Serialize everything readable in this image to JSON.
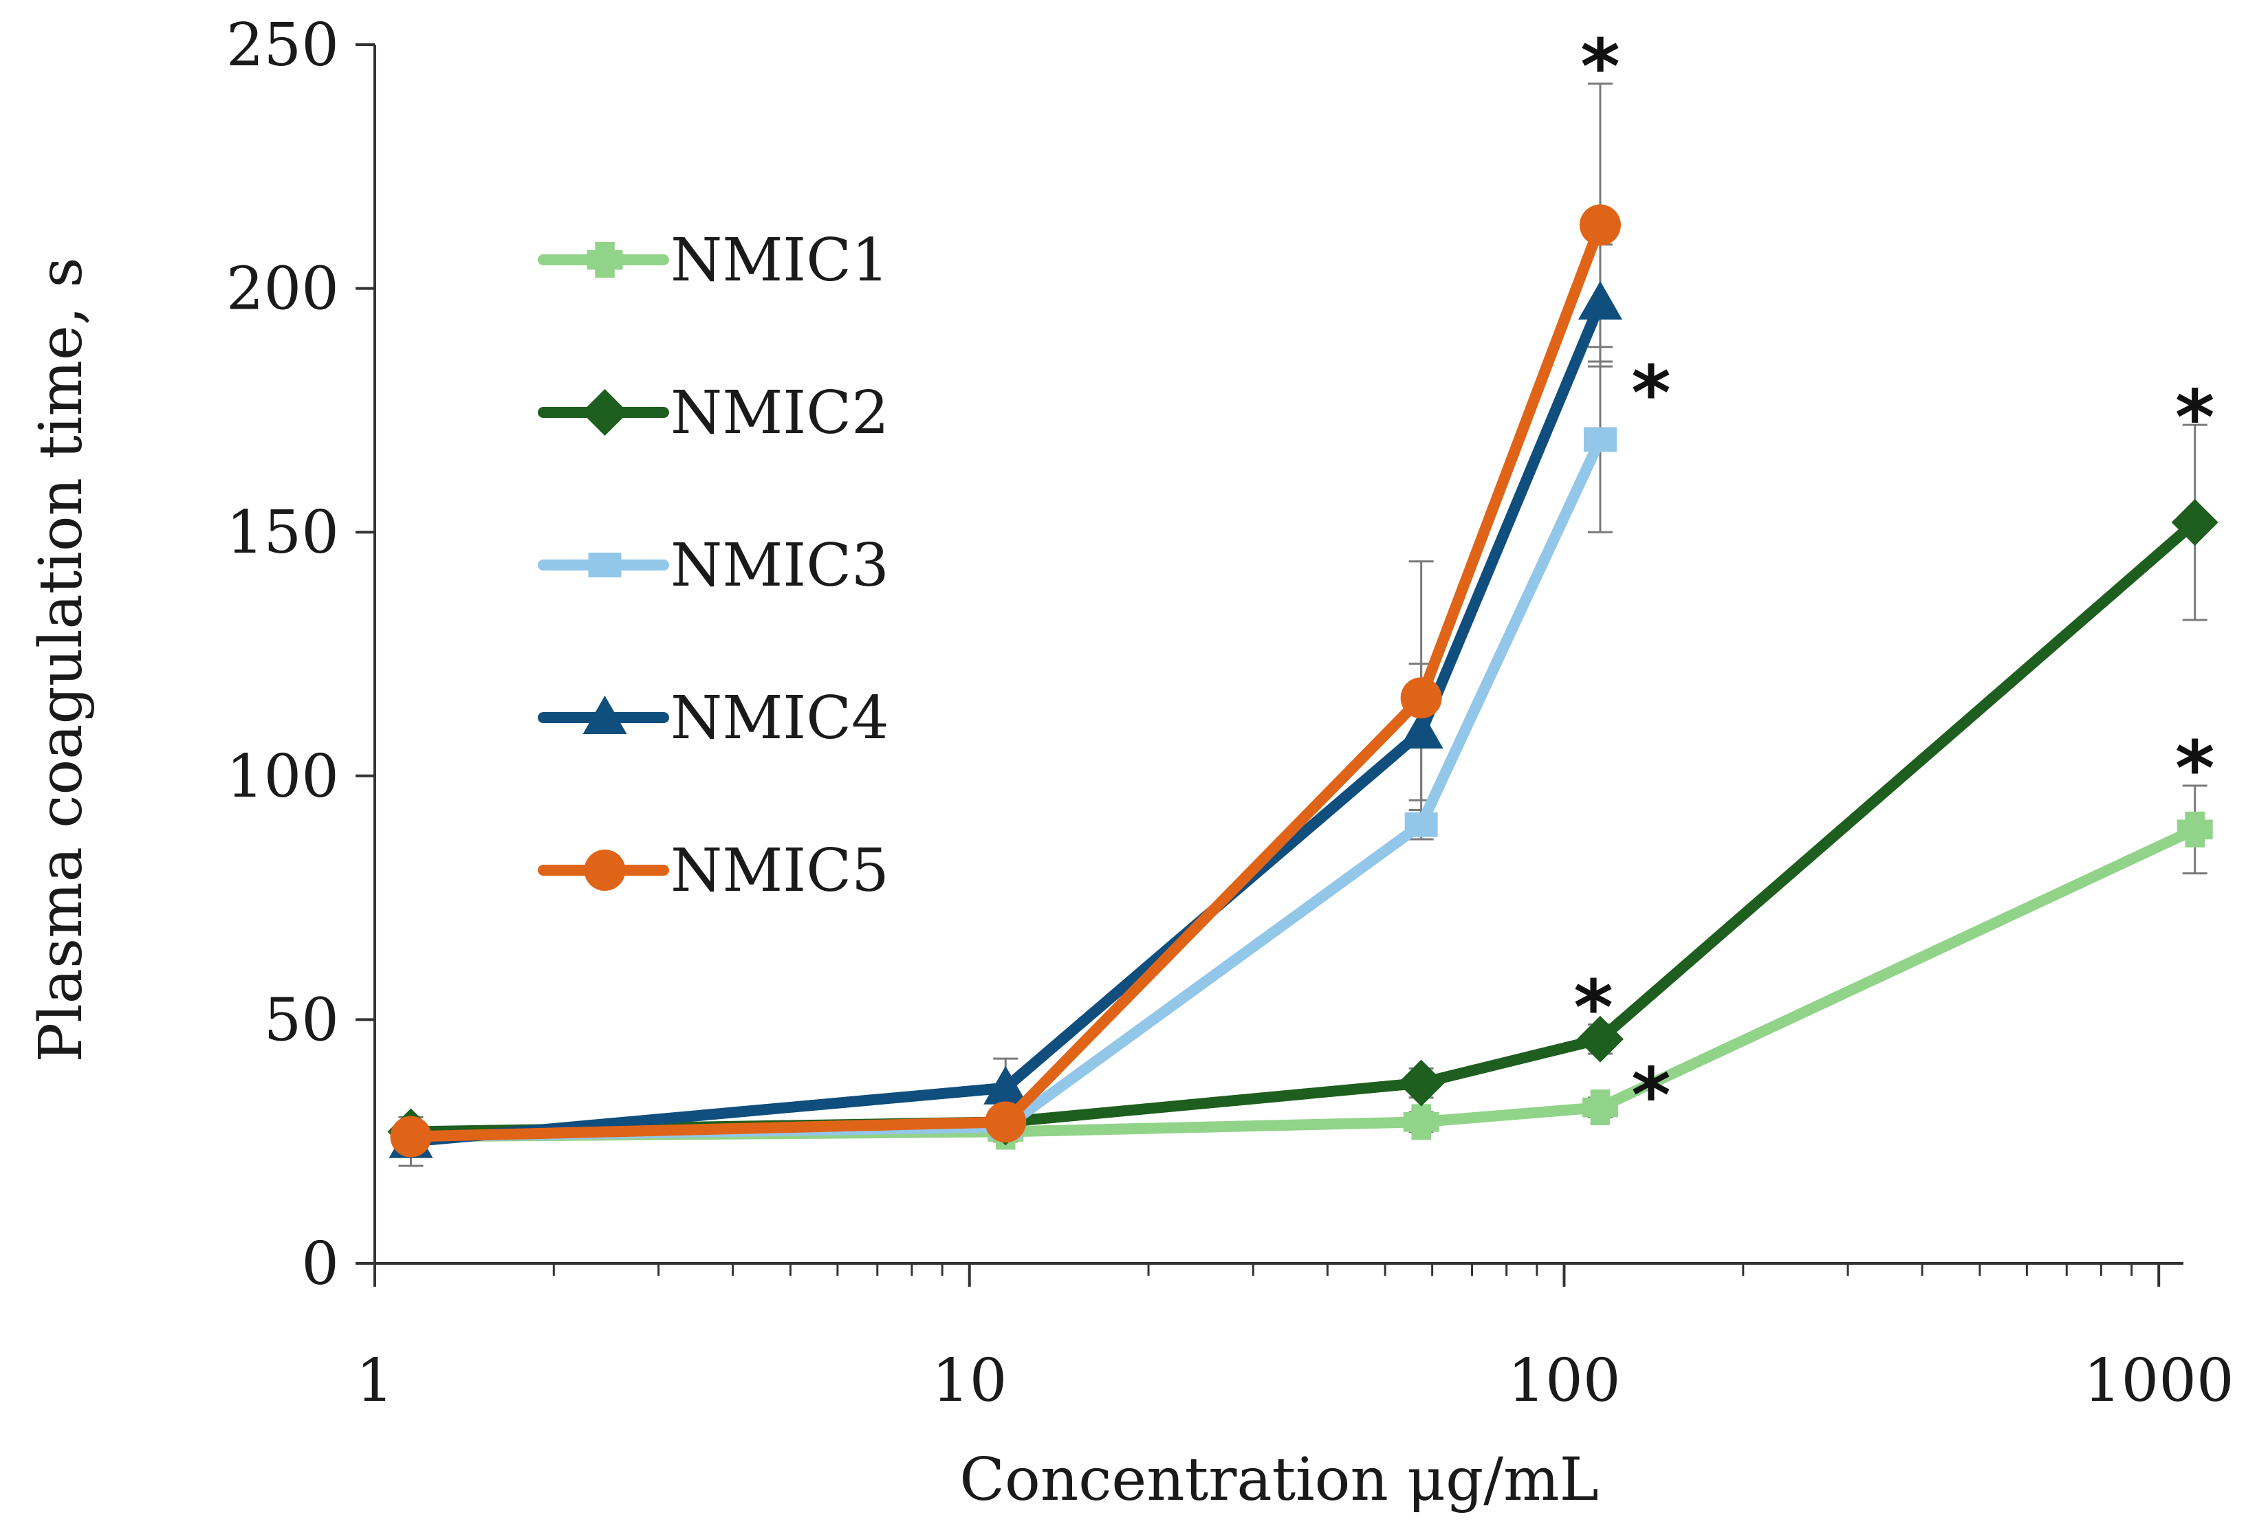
{
  "chart_data": {
    "type": "line",
    "title": "",
    "xlabel": "Concentration μg/mL",
    "ylabel": "Plasma coagulation time, s",
    "xscale": "log",
    "xlim": [
      1,
      1100
    ],
    "ylim": [
      0,
      250
    ],
    "x_ticks": [
      1,
      10,
      100,
      1000
    ],
    "x_tick_labels": [
      "1",
      "10",
      "100",
      "1000"
    ],
    "y_ticks": [
      0,
      50,
      100,
      150,
      200,
      250
    ],
    "y_tick_labels": [
      "0",
      "50",
      "100",
      "150",
      "200",
      "250"
    ],
    "legend_position": "top-left",
    "series": [
      {
        "name": "NMIC1",
        "color": "#92d38a",
        "marker": "cross",
        "x": [
          1.15,
          11.5,
          57.5,
          115,
          1150
        ],
        "y": [
          26,
          27,
          29,
          32,
          89
        ],
        "err": [
          2,
          2,
          2,
          2,
          9
        ]
      },
      {
        "name": "NMIC2",
        "color": "#1e5e1e",
        "marker": "diamond",
        "x": [
          1.15,
          11.5,
          57.5,
          115,
          1150
        ],
        "y": [
          27,
          29,
          37,
          46,
          152
        ],
        "err": [
          2,
          2,
          3,
          3,
          20
        ]
      },
      {
        "name": "NMIC3",
        "color": "#93c7ea",
        "marker": "square",
        "x": [
          1.15,
          11.5,
          57.5,
          115
        ],
        "y": [
          26,
          28,
          90,
          169
        ],
        "err": [
          2,
          2,
          3,
          19
        ]
      },
      {
        "name": "NMIC4",
        "color": "#0f4e7d",
        "marker": "triangle",
        "x": [
          1.15,
          11.5,
          57.5,
          115
        ],
        "y": [
          25,
          36,
          109,
          197
        ],
        "err": [
          5,
          6,
          14,
          12
        ]
      },
      {
        "name": "NMIC5",
        "color": "#e06418",
        "marker": "circle",
        "x": [
          1.15,
          11.5,
          57.5,
          115
        ],
        "y": [
          26,
          29,
          116,
          213
        ],
        "err": [
          3,
          3,
          28,
          29
        ]
      }
    ],
    "annotations": [
      {
        "text": "*",
        "x": 115,
        "y": 250
      },
      {
        "text": "*",
        "x": 140,
        "y": 183
      },
      {
        "text": "*",
        "x": 1150,
        "y": 178
      },
      {
        "text": "*",
        "x": 1150,
        "y": 106
      },
      {
        "text": "*",
        "x": 112,
        "y": 57
      },
      {
        "text": "*",
        "x": 140,
        "y": 39
      }
    ]
  }
}
